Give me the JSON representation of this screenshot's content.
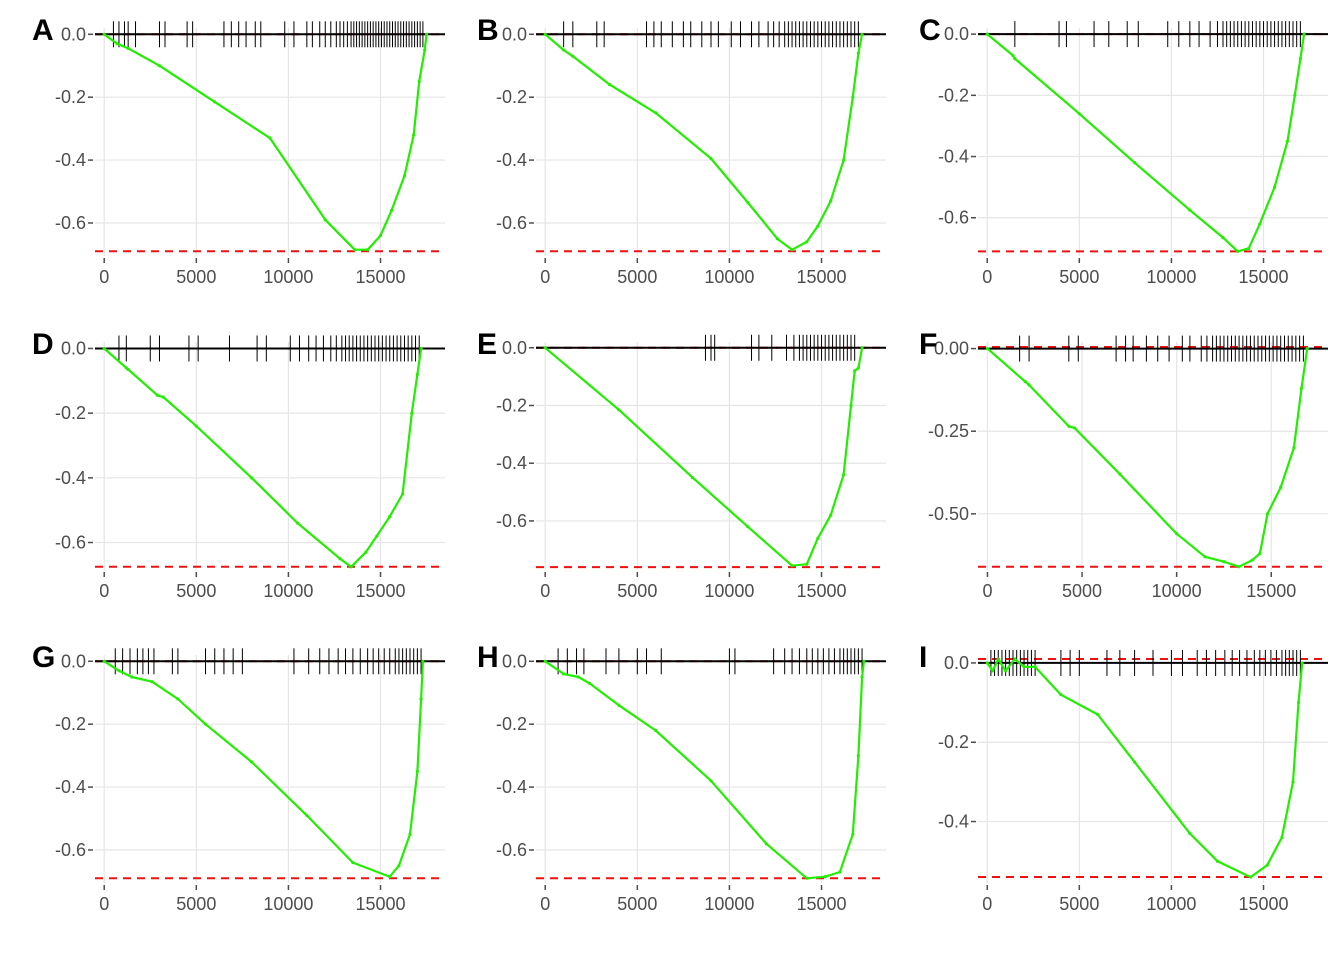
{
  "figure": {
    "colors": {
      "curve": "#22ee00",
      "baseline": "#000000",
      "threshold": "#ee1111",
      "grid": "#e5e5e5",
      "ticks": "#4d4d4d"
    },
    "grid": true
  },
  "chart_data": [
    {
      "panel": "A",
      "type": "line",
      "xlim": [
        -500,
        18500
      ],
      "ylim": [
        -0.705,
        0.02
      ],
      "x_ticks": [
        0,
        5000,
        10000,
        15000
      ],
      "x_tick_labels": [
        "0",
        "5000",
        "10000",
        "15000"
      ],
      "y_ticks": [
        0,
        -0.2,
        -0.4,
        -0.6
      ],
      "y_tick_labels": [
        "0.0",
        "-0.2",
        "-0.4",
        "-0.6"
      ],
      "min_es": -0.69,
      "max_es": 0,
      "curve": [
        [
          0,
          0
        ],
        [
          700,
          -0.03
        ],
        [
          1300,
          -0.045
        ],
        [
          3000,
          -0.1
        ],
        [
          6000,
          -0.215
        ],
        [
          9000,
          -0.33
        ],
        [
          12000,
          -0.59
        ],
        [
          13600,
          -0.685
        ],
        [
          14300,
          -0.685
        ],
        [
          15000,
          -0.64
        ],
        [
          15600,
          -0.56
        ],
        [
          16300,
          -0.45
        ],
        [
          16800,
          -0.32
        ],
        [
          17100,
          -0.15
        ],
        [
          17400,
          -0.05
        ],
        [
          17500,
          0
        ]
      ],
      "hits": [
        500,
        800,
        1100,
        1300,
        1700,
        3000,
        3300,
        4500,
        4800,
        6500,
        6900,
        7300,
        7700,
        8200,
        8500,
        9800,
        10300,
        11000,
        11300,
        11700,
        12000,
        12300,
        12600,
        12800,
        13000,
        13200,
        13400,
        13550,
        13700,
        13850,
        14000,
        14150,
        14300,
        14450,
        14600,
        14750,
        14900,
        15050,
        15200,
        15350,
        15500,
        15650,
        15800,
        15950,
        16100,
        16250,
        16400,
        16550,
        16700,
        16850,
        17000,
        17150,
        17300
      ]
    },
    {
      "panel": "B",
      "type": "line",
      "xlim": [
        -500,
        18500
      ],
      "ylim": [
        -0.705,
        0.02
      ],
      "x_ticks": [
        0,
        5000,
        10000,
        15000
      ],
      "x_tick_labels": [
        "0",
        "5000",
        "10000",
        "15000"
      ],
      "y_ticks": [
        0,
        -0.2,
        -0.4,
        -0.6
      ],
      "y_tick_labels": [
        "0.0",
        "-0.2",
        "-0.4",
        "-0.6"
      ],
      "min_es": -0.69,
      "max_es": 0,
      "curve": [
        [
          0,
          0
        ],
        [
          1000,
          -0.05
        ],
        [
          1500,
          -0.07
        ],
        [
          3500,
          -0.16
        ],
        [
          6000,
          -0.25
        ],
        [
          9000,
          -0.395
        ],
        [
          11000,
          -0.535
        ],
        [
          12600,
          -0.65
        ],
        [
          13400,
          -0.685
        ],
        [
          14200,
          -0.66
        ],
        [
          14800,
          -0.61
        ],
        [
          15500,
          -0.53
        ],
        [
          16200,
          -0.4
        ],
        [
          16700,
          -0.2
        ],
        [
          17000,
          -0.06
        ],
        [
          17200,
          0
        ]
      ],
      "hits": [
        1000,
        1500,
        2800,
        3200,
        5500,
        5900,
        6300,
        6900,
        7500,
        7900,
        8500,
        9000,
        9400,
        10100,
        10600,
        11200,
        11600,
        12100,
        12400,
        12700,
        13000,
        13200,
        13400,
        13600,
        13800,
        14000,
        14200,
        14400,
        14600,
        14800,
        15000,
        15200,
        15400,
        15600,
        15800,
        16000,
        16200,
        16400,
        16600,
        16800,
        17000
      ]
    },
    {
      "panel": "C",
      "type": "line",
      "xlim": [
        -500,
        18500
      ],
      "ylim": [
        -0.725,
        0.02
      ],
      "x_ticks": [
        0,
        5000,
        10000,
        15000
      ],
      "x_tick_labels": [
        "0",
        "5000",
        "10000",
        "15000"
      ],
      "y_ticks": [
        0,
        -0.2,
        -0.4,
        -0.6
      ],
      "y_tick_labels": [
        "0.0",
        "-0.2",
        "-0.4",
        "-0.6"
      ],
      "min_es": -0.71,
      "max_es": 0,
      "curve": [
        [
          0,
          0
        ],
        [
          1400,
          -0.07
        ],
        [
          1500,
          -0.08
        ],
        [
          5000,
          -0.26
        ],
        [
          8000,
          -0.42
        ],
        [
          11000,
          -0.575
        ],
        [
          12800,
          -0.665
        ],
        [
          13600,
          -0.71
        ],
        [
          14200,
          -0.7
        ],
        [
          14800,
          -0.62
        ],
        [
          15600,
          -0.5
        ],
        [
          16300,
          -0.35
        ],
        [
          16700,
          -0.2
        ],
        [
          17000,
          -0.08
        ],
        [
          17200,
          0
        ]
      ],
      "hits": [
        1500,
        3900,
        4300,
        5800,
        6600,
        7600,
        8200,
        9800,
        10400,
        11000,
        11500,
        12100,
        12500,
        12800,
        13000,
        13200,
        13400,
        13600,
        13800,
        14000,
        14200,
        14400,
        14600,
        14800,
        15000,
        15200,
        15400,
        15600,
        15800,
        16000,
        16200,
        16400,
        16600,
        16800,
        17000
      ]
    },
    {
      "panel": "D",
      "type": "line",
      "xlim": [
        -500,
        18500
      ],
      "ylim": [
        -0.685,
        0.02
      ],
      "x_ticks": [
        0,
        5000,
        10000,
        15000
      ],
      "x_tick_labels": [
        "0",
        "5000",
        "10000",
        "15000"
      ],
      "y_ticks": [
        0,
        -0.2,
        -0.4,
        -0.6
      ],
      "y_tick_labels": [
        "0.0",
        "-0.2",
        "-0.4",
        "-0.6"
      ],
      "min_es": -0.675,
      "max_es": 0,
      "curve": [
        [
          0,
          0
        ],
        [
          1200,
          -0.06
        ],
        [
          1300,
          -0.065
        ],
        [
          2900,
          -0.145
        ],
        [
          3200,
          -0.15
        ],
        [
          5000,
          -0.24
        ],
        [
          8000,
          -0.4
        ],
        [
          10500,
          -0.54
        ],
        [
          12800,
          -0.65
        ],
        [
          13400,
          -0.675
        ],
        [
          14200,
          -0.63
        ],
        [
          14800,
          -0.58
        ],
        [
          15500,
          -0.52
        ],
        [
          16200,
          -0.45
        ],
        [
          16700,
          -0.2
        ],
        [
          17000,
          -0.08
        ],
        [
          17200,
          0
        ]
      ],
      "hits": [
        800,
        1200,
        2500,
        3000,
        4600,
        5100,
        6800,
        8300,
        8800,
        10100,
        10600,
        11100,
        11500,
        11900,
        12300,
        12600,
        12900,
        13100,
        13300,
        13500,
        13700,
        13900,
        14100,
        14300,
        14500,
        14700,
        14900,
        15100,
        15300,
        15500,
        15700,
        15900,
        16100,
        16300,
        16500,
        16700,
        16900,
        17100
      ]
    },
    {
      "panel": "E",
      "type": "line",
      "xlim": [
        -500,
        18500
      ],
      "ylim": [
        -0.77,
        0.02
      ],
      "x_ticks": [
        0,
        5000,
        10000,
        15000
      ],
      "x_tick_labels": [
        "0",
        "5000",
        "10000",
        "15000"
      ],
      "y_ticks": [
        0,
        -0.2,
        -0.4,
        -0.6
      ],
      "y_tick_labels": [
        "0.0",
        "-0.2",
        "-0.4",
        "-0.6"
      ],
      "min_es": -0.76,
      "max_es": 0,
      "curve": [
        [
          0,
          0
        ],
        [
          4000,
          -0.215
        ],
        [
          8000,
          -0.45
        ],
        [
          11000,
          -0.62
        ],
        [
          13400,
          -0.755
        ],
        [
          14200,
          -0.75
        ],
        [
          14800,
          -0.66
        ],
        [
          15500,
          -0.58
        ],
        [
          16200,
          -0.44
        ],
        [
          16600,
          -0.2
        ],
        [
          16800,
          -0.08
        ],
        [
          17000,
          -0.07
        ],
        [
          17200,
          0
        ]
      ],
      "hits": [
        8700,
        9000,
        9200,
        11200,
        11600,
        12300,
        13100,
        13500,
        13800,
        14000,
        14200,
        14400,
        14600,
        14800,
        15000,
        15200,
        15400,
        15600,
        15800,
        16000,
        16200,
        16400,
        16600,
        16800
      ]
    },
    {
      "panel": "F",
      "type": "line",
      "xlim": [
        -500,
        18000
      ],
      "ylim": [
        -0.67,
        0.02
      ],
      "x_ticks": [
        0,
        5000,
        10000,
        15000
      ],
      "x_tick_labels": [
        "0",
        "5000",
        "10000",
        "15000"
      ],
      "y_ticks": [
        0,
        -0.25,
        -0.5
      ],
      "y_tick_labels": [
        "0.00",
        "-0.25",
        "-0.50"
      ],
      "min_es": -0.66,
      "max_es": 0.005,
      "curve": [
        [
          0,
          0
        ],
        [
          2000,
          -0.1
        ],
        [
          2200,
          -0.11
        ],
        [
          4300,
          -0.235
        ],
        [
          4600,
          -0.24
        ],
        [
          7000,
          -0.38
        ],
        [
          10000,
          -0.56
        ],
        [
          11500,
          -0.63
        ],
        [
          12500,
          -0.645
        ],
        [
          13300,
          -0.66
        ],
        [
          14000,
          -0.64
        ],
        [
          14400,
          -0.62
        ],
        [
          14800,
          -0.5
        ],
        [
          15500,
          -0.42
        ],
        [
          16200,
          -0.3
        ],
        [
          16600,
          -0.12
        ],
        [
          16900,
          0
        ]
      ],
      "hits": [
        1700,
        2200,
        4300,
        4800,
        6800,
        7300,
        7700,
        8400,
        9000,
        9600,
        10300,
        10700,
        11300,
        11600,
        11900,
        12100,
        12300,
        12500,
        12700,
        12900,
        13100,
        13300,
        13500,
        13700,
        13900,
        14100,
        14300,
        14500,
        14700,
        14900,
        15100,
        15300,
        15500,
        15700,
        15900,
        16100,
        16300,
        16500,
        16700
      ]
    },
    {
      "panel": "G",
      "type": "line",
      "xlim": [
        -500,
        18500
      ],
      "ylim": [
        -0.705,
        0.02
      ],
      "x_ticks": [
        0,
        5000,
        10000,
        15000
      ],
      "x_tick_labels": [
        "0",
        "5000",
        "10000",
        "15000"
      ],
      "y_ticks": [
        0,
        -0.2,
        -0.4,
        -0.6
      ],
      "y_tick_labels": [
        "0.0",
        "-0.2",
        "-0.4",
        "-0.6"
      ],
      "min_es": -0.69,
      "max_es": 0,
      "curve": [
        [
          0,
          0
        ],
        [
          800,
          -0.03
        ],
        [
          1500,
          -0.05
        ],
        [
          2600,
          -0.065
        ],
        [
          4000,
          -0.12
        ],
        [
          5500,
          -0.2
        ],
        [
          8000,
          -0.32
        ],
        [
          11000,
          -0.49
        ],
        [
          13500,
          -0.64
        ],
        [
          15500,
          -0.685
        ],
        [
          16000,
          -0.65
        ],
        [
          16600,
          -0.55
        ],
        [
          17000,
          -0.35
        ],
        [
          17200,
          -0.12
        ],
        [
          17300,
          0
        ]
      ],
      "hits": [
        600,
        1000,
        1400,
        1800,
        2100,
        2400,
        2700,
        3700,
        4000,
        5500,
        6000,
        6500,
        7000,
        7500,
        10300,
        11100,
        11700,
        12200,
        12700,
        13100,
        13500,
        13900,
        14300,
        14600,
        14900,
        15200,
        15500,
        15800,
        16000,
        16200,
        16400,
        16600,
        16800,
        17000,
        17200
      ]
    },
    {
      "panel": "H",
      "type": "line",
      "xlim": [
        -500,
        18500
      ],
      "ylim": [
        -0.705,
        0.02
      ],
      "x_ticks": [
        0,
        5000,
        10000,
        15000
      ],
      "x_tick_labels": [
        "0",
        "5000",
        "10000",
        "15000"
      ],
      "y_ticks": [
        0,
        -0.2,
        -0.4,
        -0.6
      ],
      "y_tick_labels": [
        "0.0",
        "-0.2",
        "-0.4",
        "-0.6"
      ],
      "min_es": -0.69,
      "max_es": 0,
      "curve": [
        [
          0,
          0
        ],
        [
          1000,
          -0.04
        ],
        [
          1800,
          -0.05
        ],
        [
          2400,
          -0.07
        ],
        [
          4000,
          -0.14
        ],
        [
          6000,
          -0.22
        ],
        [
          9000,
          -0.38
        ],
        [
          12000,
          -0.58
        ],
        [
          14200,
          -0.69
        ],
        [
          15200,
          -0.685
        ],
        [
          16000,
          -0.67
        ],
        [
          16700,
          -0.55
        ],
        [
          17000,
          -0.3
        ],
        [
          17200,
          -0.05
        ],
        [
          17300,
          0
        ]
      ],
      "hits": [
        700,
        1200,
        1700,
        2100,
        3300,
        4000,
        5000,
        5500,
        6300,
        10000,
        10300,
        12400,
        13000,
        13400,
        13800,
        14200,
        14500,
        14800,
        15100,
        15400,
        15700,
        16000,
        16200,
        16400,
        16600,
        16800,
        17000,
        17200
      ]
    },
    {
      "panel": "I",
      "type": "line",
      "xlim": [
        -500,
        18500
      ],
      "ylim": [
        -0.555,
        0.02
      ],
      "x_ticks": [
        0,
        5000,
        10000,
        15000
      ],
      "x_tick_labels": [
        "0",
        "5000",
        "10000",
        "15000"
      ],
      "y_ticks": [
        0,
        -0.2,
        -0.4
      ],
      "y_tick_labels": [
        "0.0",
        "-0.2",
        "-0.4"
      ],
      "min_es": -0.54,
      "max_es": 0.01,
      "curve": [
        [
          0,
          0
        ],
        [
          300,
          -0.02
        ],
        [
          600,
          0.01
        ],
        [
          1000,
          -0.02
        ],
        [
          1500,
          0.01
        ],
        [
          2000,
          -0.01
        ],
        [
          2600,
          -0.01
        ],
        [
          4000,
          -0.08
        ],
        [
          6000,
          -0.13
        ],
        [
          8000,
          -0.25
        ],
        [
          11000,
          -0.43
        ],
        [
          12500,
          -0.5
        ],
        [
          14300,
          -0.54
        ],
        [
          15200,
          -0.51
        ],
        [
          16000,
          -0.44
        ],
        [
          16600,
          -0.3
        ],
        [
          16900,
          -0.1
        ],
        [
          17100,
          0
        ]
      ],
      "hits": [
        200,
        400,
        600,
        800,
        1000,
        1200,
        1400,
        1600,
        1800,
        2000,
        2200,
        2400,
        2600,
        4000,
        4500,
        5000,
        6500,
        7200,
        8000,
        9000,
        10000,
        10600,
        11400,
        11900,
        12400,
        12900,
        13300,
        13700,
        14100,
        14500,
        14800,
        15100,
        15400,
        15700,
        16000,
        16200,
        16400,
        16600,
        16800,
        17000
      ]
    }
  ]
}
